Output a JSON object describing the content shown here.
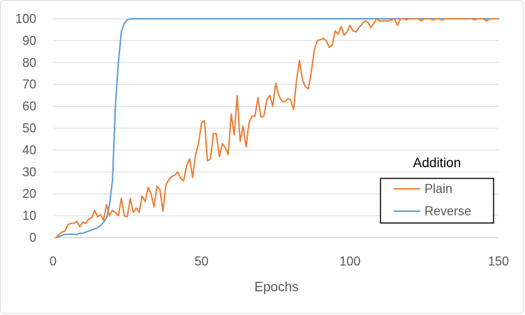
{
  "chart_data": {
    "type": "line",
    "title": "",
    "xlabel": "Epochs",
    "ylabel": "",
    "xlim": [
      0,
      150
    ],
    "ylim": [
      0,
      100
    ],
    "x_ticks": [
      "0",
      "50",
      "100",
      "150"
    ],
    "y_ticks": [
      "0",
      "10",
      "20",
      "30",
      "40",
      "50",
      "60",
      "70",
      "80",
      "90",
      "100"
    ],
    "grid": "horizontal",
    "legend": {
      "title": "Addition",
      "position": "right"
    },
    "series": [
      {
        "name": "Plain",
        "color": "#ED7D31",
        "x": [
          1,
          2,
          3,
          4,
          5,
          6,
          7,
          8,
          9,
          10,
          11,
          12,
          13,
          14,
          15,
          16,
          17,
          18,
          19,
          20,
          21,
          22,
          23,
          24,
          25,
          26,
          27,
          28,
          29,
          30,
          31,
          32,
          33,
          34,
          35,
          36,
          37,
          38,
          39,
          40,
          41,
          42,
          43,
          44,
          45,
          46,
          47,
          48,
          49,
          50,
          51,
          52,
          53,
          54,
          55,
          56,
          57,
          58,
          59,
          60,
          61,
          62,
          63,
          64,
          65,
          66,
          67,
          68,
          69,
          70,
          71,
          72,
          73,
          74,
          75,
          76,
          77,
          78,
          79,
          80,
          81,
          82,
          83,
          84,
          85,
          86,
          87,
          88,
          89,
          90,
          91,
          92,
          93,
          94,
          95,
          96,
          97,
          98,
          99,
          100,
          101,
          102,
          103,
          104,
          105,
          106,
          107,
          108,
          109,
          110,
          111,
          112,
          113,
          114,
          115,
          116,
          117,
          118,
          119,
          120,
          121,
          122,
          123,
          124,
          125,
          126,
          127,
          128,
          129,
          130,
          131,
          132,
          133,
          134,
          135,
          136,
          137,
          138,
          139,
          140,
          141,
          142,
          143,
          144,
          145,
          146,
          147,
          148,
          149,
          150
        ],
        "values": [
          0,
          1.5,
          2.5,
          3,
          6,
          6.5,
          6.5,
          7.5,
          5,
          7,
          6.5,
          8.5,
          9,
          12.5,
          9.5,
          10.5,
          8,
          15,
          10,
          12.5,
          11.5,
          10,
          18,
          10,
          9.5,
          18,
          11.5,
          13.5,
          11.5,
          19,
          16.5,
          23,
          20,
          14,
          23.5,
          22,
          12,
          24,
          26.5,
          28,
          28.5,
          30,
          27,
          26,
          33,
          36,
          27.5,
          38,
          43,
          52.5,
          53.5,
          35,
          36,
          47.5,
          47.5,
          37,
          43,
          41,
          38,
          56.5,
          47,
          65,
          44,
          51,
          41.5,
          52.5,
          55.5,
          55.5,
          64,
          55,
          55.5,
          63,
          65,
          60,
          70.5,
          65,
          62.5,
          62,
          63.5,
          63,
          58.5,
          72,
          81,
          72,
          69,
          68,
          76,
          86,
          90,
          90.5,
          91,
          90,
          87,
          88,
          94.5,
          93,
          96.5,
          92.5,
          94,
          97,
          94.5,
          94,
          96,
          97.5,
          99,
          98.5,
          96,
          98,
          100,
          99,
          99,
          99,
          99,
          99.5,
          100,
          97,
          100,
          100,
          99.5,
          100,
          100,
          100,
          100,
          99,
          100,
          100,
          100,
          99.5,
          100,
          100,
          99.5,
          100,
          100,
          100,
          100,
          100,
          100,
          100,
          100,
          100,
          100,
          99.5,
          100,
          100,
          100,
          99,
          100,
          100,
          100,
          100
        ]
      },
      {
        "name": "Reverse",
        "color": "#5B9BD5",
        "x": [
          1,
          2,
          3,
          4,
          5,
          6,
          7,
          8,
          9,
          10,
          11,
          12,
          13,
          14,
          15,
          16,
          17,
          18,
          19,
          20,
          21,
          22,
          23,
          24,
          25,
          26,
          27,
          28,
          29,
          30,
          40,
          60,
          80,
          100,
          120,
          140,
          150
        ],
        "values": [
          0,
          0.5,
          1,
          1.5,
          1.5,
          1.5,
          1.5,
          1.5,
          2,
          2,
          2.5,
          3,
          3.5,
          4,
          4.5,
          5.5,
          7,
          9,
          15,
          26,
          60,
          80,
          94,
          98,
          99.5,
          100,
          100,
          100,
          100,
          100,
          100,
          100,
          100,
          100,
          100,
          100,
          100
        ]
      }
    ]
  }
}
